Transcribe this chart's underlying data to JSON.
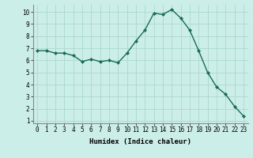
{
  "x": [
    0,
    1,
    2,
    3,
    4,
    5,
    6,
    7,
    8,
    9,
    10,
    11,
    12,
    13,
    14,
    15,
    16,
    17,
    18,
    19,
    20,
    21,
    22,
    23
  ],
  "y": [
    6.8,
    6.8,
    6.6,
    6.6,
    6.4,
    5.9,
    6.1,
    5.9,
    6.0,
    5.8,
    6.6,
    7.6,
    8.5,
    9.9,
    9.8,
    10.2,
    9.5,
    8.5,
    6.8,
    5.0,
    3.8,
    3.2,
    2.2,
    1.4
  ],
  "xlabel": "Humidex (Indice chaleur)",
  "bg_color": "#cceee8",
  "grid_color": "#aad8d0",
  "line_color": "#1a6b5a",
  "marker": "D",
  "marker_size": 2.0,
  "line_width": 1.0,
  "xlim": [
    -0.5,
    23.5
  ],
  "ylim": [
    0.8,
    10.6
  ],
  "yticks": [
    1,
    2,
    3,
    4,
    5,
    6,
    7,
    8,
    9,
    10
  ],
  "xticks": [
    0,
    1,
    2,
    3,
    4,
    5,
    6,
    7,
    8,
    9,
    10,
    11,
    12,
    13,
    14,
    15,
    16,
    17,
    18,
    19,
    20,
    21,
    22,
    23
  ],
  "xlabel_fontsize": 6.5,
  "tick_fontsize": 5.5
}
